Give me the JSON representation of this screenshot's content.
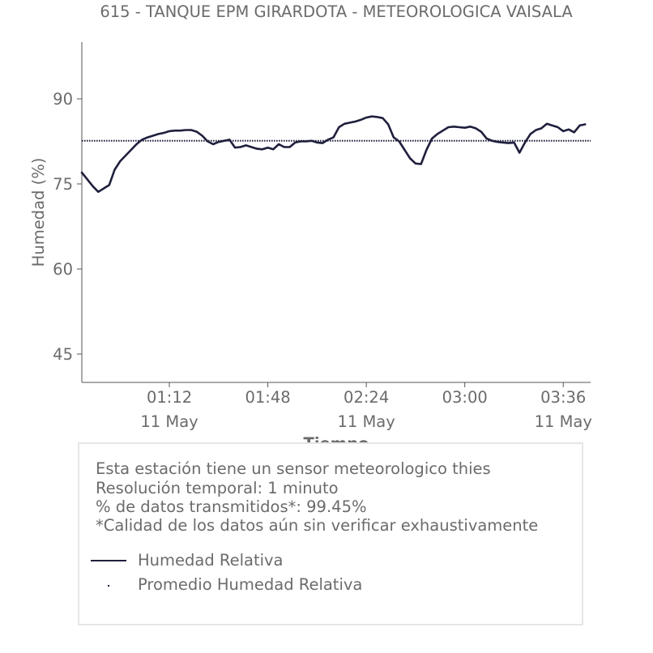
{
  "chart_data": {
    "type": "line",
    "title": "615 - TANQUE EPM GIRARDOTA - METEOROLOGICA VAISALA",
    "xlabel": "Tiempo",
    "ylabel": "Humedad (%)",
    "ylim": [
      40,
      100
    ],
    "yticks": [
      45,
      60,
      75,
      90
    ],
    "x_range": [
      "00:40",
      "03:46"
    ],
    "xticks": [
      {
        "time": "01:12",
        "label": "01:12",
        "date": "11 May"
      },
      {
        "time": "01:48",
        "label": "01:48",
        "date": ""
      },
      {
        "time": "02:24",
        "label": "02:24",
        "date": "11 May"
      },
      {
        "time": "03:00",
        "label": "03:00",
        "date": ""
      },
      {
        "time": "03:36",
        "label": "03:36",
        "date": "11 May"
      }
    ],
    "grid": false,
    "colors": {
      "series": "#1f1f3d",
      "average": "#1f1f3d",
      "text": "#6b6b6b",
      "axis": "#555555"
    },
    "series": [
      {
        "name": "Humedad Relativa",
        "style": "solid",
        "points": [
          [
            "00:40",
            77.0
          ],
          [
            "00:42",
            75.8
          ],
          [
            "00:44",
            74.6
          ],
          [
            "00:46",
            73.6
          ],
          [
            "00:48",
            74.2
          ],
          [
            "00:50",
            74.8
          ],
          [
            "00:52",
            77.5
          ],
          [
            "00:54",
            79.0
          ],
          [
            "00:56",
            80.0
          ],
          [
            "00:58",
            81.0
          ],
          [
            "01:00",
            82.0
          ],
          [
            "01:02",
            82.8
          ],
          [
            "01:04",
            83.2
          ],
          [
            "01:06",
            83.5
          ],
          [
            "01:08",
            83.8
          ],
          [
            "01:10",
            84.0
          ],
          [
            "01:12",
            84.3
          ],
          [
            "01:14",
            84.4
          ],
          [
            "01:16",
            84.4
          ],
          [
            "01:18",
            84.5
          ],
          [
            "01:20",
            84.5
          ],
          [
            "01:22",
            84.2
          ],
          [
            "01:24",
            83.5
          ],
          [
            "01:26",
            82.5
          ],
          [
            "01:28",
            82.0
          ],
          [
            "01:30",
            82.4
          ],
          [
            "01:32",
            82.6
          ],
          [
            "01:34",
            82.8
          ],
          [
            "01:36",
            81.4
          ],
          [
            "01:38",
            81.5
          ],
          [
            "01:40",
            81.8
          ],
          [
            "01:42",
            81.5
          ],
          [
            "01:44",
            81.2
          ],
          [
            "01:46",
            81.1
          ],
          [
            "01:48",
            81.4
          ],
          [
            "01:50",
            81.1
          ],
          [
            "01:52",
            82.0
          ],
          [
            "01:54",
            81.5
          ],
          [
            "01:56",
            81.5
          ],
          [
            "01:58",
            82.3
          ],
          [
            "02:00",
            82.5
          ],
          [
            "02:02",
            82.5
          ],
          [
            "02:04",
            82.6
          ],
          [
            "02:06",
            82.3
          ],
          [
            "02:08",
            82.2
          ],
          [
            "02:10",
            82.8
          ],
          [
            "02:12",
            83.2
          ],
          [
            "02:14",
            85.0
          ],
          [
            "02:16",
            85.6
          ],
          [
            "02:18",
            85.8
          ],
          [
            "02:20",
            86.0
          ],
          [
            "02:22",
            86.3
          ],
          [
            "02:24",
            86.7
          ],
          [
            "02:26",
            86.9
          ],
          [
            "02:28",
            86.8
          ],
          [
            "02:30",
            86.6
          ],
          [
            "02:32",
            85.5
          ],
          [
            "02:34",
            83.2
          ],
          [
            "02:36",
            82.5
          ],
          [
            "02:38",
            81.0
          ],
          [
            "02:40",
            79.5
          ],
          [
            "02:42",
            78.6
          ],
          [
            "02:44",
            78.5
          ],
          [
            "02:46",
            81.0
          ],
          [
            "02:48",
            83.0
          ],
          [
            "02:50",
            83.8
          ],
          [
            "02:52",
            84.4
          ],
          [
            "02:54",
            85.0
          ],
          [
            "02:56",
            85.1
          ],
          [
            "02:58",
            85.0
          ],
          [
            "03:00",
            84.9
          ],
          [
            "03:02",
            85.1
          ],
          [
            "03:04",
            84.8
          ],
          [
            "03:06",
            84.2
          ],
          [
            "03:08",
            83.0
          ],
          [
            "03:10",
            82.6
          ],
          [
            "03:12",
            82.4
          ],
          [
            "03:14",
            82.3
          ],
          [
            "03:16",
            82.2
          ],
          [
            "03:18",
            82.3
          ],
          [
            "03:20",
            80.5
          ],
          [
            "03:22",
            82.3
          ],
          [
            "03:24",
            83.8
          ],
          [
            "03:26",
            84.5
          ],
          [
            "03:28",
            84.8
          ],
          [
            "03:30",
            85.6
          ],
          [
            "03:32",
            85.3
          ],
          [
            "03:34",
            85.0
          ],
          [
            "03:36",
            84.3
          ],
          [
            "03:38",
            84.6
          ],
          [
            "03:40",
            84.1
          ],
          [
            "03:42",
            85.3
          ],
          [
            "03:44",
            85.5
          ]
        ]
      },
      {
        "name": "Promedio Humedad Relativa",
        "style": "dotted",
        "value": 82.6
      }
    ]
  },
  "info": {
    "lines": [
      "Esta estación tiene un sensor meteorologico thies",
      "Resolución temporal: 1 minuto",
      "% de datos transmitidos*: 99.45%",
      "*Calidad de los datos aún sin verificar exhaustivamente"
    ]
  },
  "legend": {
    "items": [
      {
        "label": "Humedad Relativa",
        "style": "solid"
      },
      {
        "label": "Promedio Humedad Relativa",
        "style": "dotted"
      }
    ]
  }
}
